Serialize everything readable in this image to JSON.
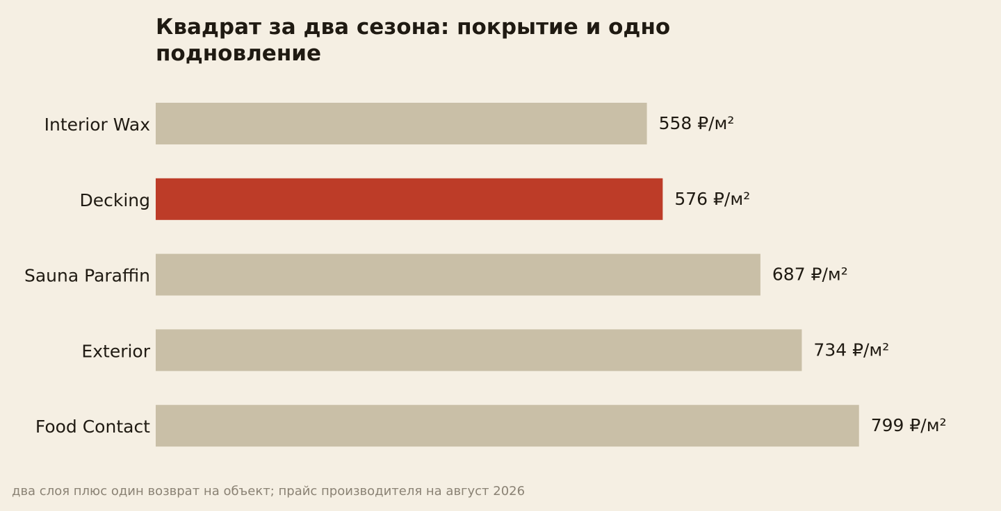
{
  "chart_data": {
    "type": "bar",
    "orientation": "horizontal",
    "title": "Квадрат за два сезона: покрытие и одно подновление",
    "categories": [
      "Interior Wax",
      "Decking",
      "Sauna Paraffin",
      "Exterior",
      "Food Contact"
    ],
    "values": [
      558,
      576,
      687,
      734,
      799
    ],
    "value_suffix": " ₽/м²",
    "highlight_category": "Decking",
    "colors": {
      "bar": "#c9bfa7",
      "highlight": "#bd3c28",
      "text": "#1f1a12",
      "footnote": "#8a8274",
      "background": "#f5efe3"
    },
    "xlim": [
      0,
      800
    ],
    "grid": false,
    "legend": "none"
  },
  "footnote": "два слоя плюс один возврат на объект; прайс производителя на август 2026"
}
